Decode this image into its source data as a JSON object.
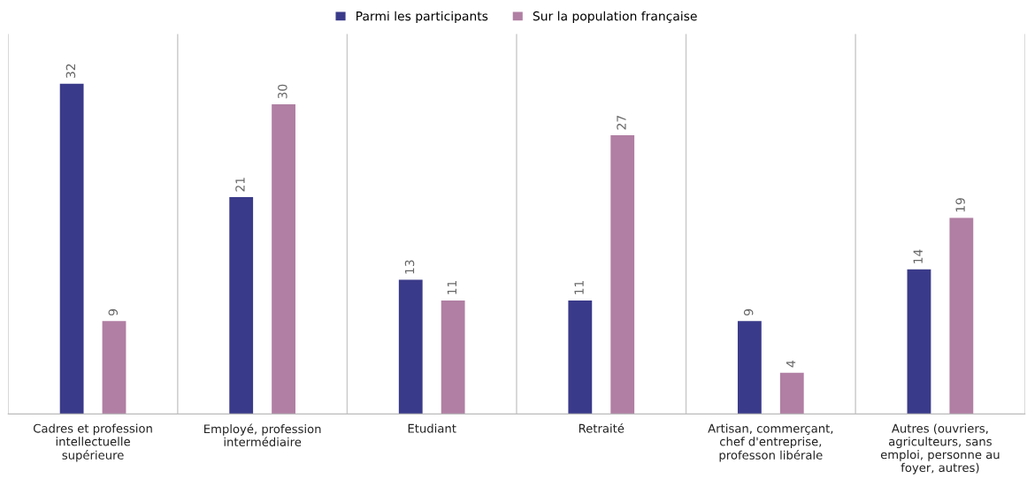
{
  "chart_data": {
    "type": "bar",
    "categories": [
      "Cadres et profession\nintellectuelle\nsupérieure",
      "Employé, profession\nintermédiaire",
      "Etudiant",
      "Retraité",
      "Artisan, commerçant,\nchef d'entreprise,\nprofesson libérale",
      "Autres (ouvriers,\nagriculteurs, sans\nemploi, personne au\nfoyer, autres)"
    ],
    "series": [
      {
        "name": "Parmi les participants",
        "color": "#3a3a8a",
        "values": [
          32,
          21,
          13,
          11,
          9,
          14
        ]
      },
      {
        "name": "Sur la population française",
        "color": "#b07fa3",
        "values": [
          9,
          30,
          11,
          27,
          4,
          19
        ]
      }
    ],
    "data_labels": true,
    "legend": "top",
    "grid": "x"
  }
}
